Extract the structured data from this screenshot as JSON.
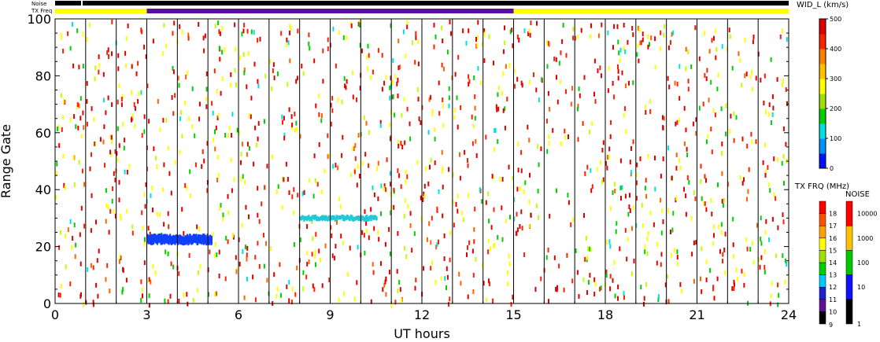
{
  "chart_data": {
    "type": "heatmap",
    "xlabel": "UT hours",
    "ylabel": "Range Gate",
    "xlim": [
      0,
      24
    ],
    "ylim": [
      0,
      100
    ],
    "x_ticks": [
      "0",
      "3",
      "6",
      "9",
      "12",
      "15",
      "18",
      "21",
      "24"
    ],
    "y_ticks": [
      "0",
      "20",
      "40",
      "60",
      "80",
      "100"
    ],
    "scan_boundaries_hours": [
      1,
      2,
      3,
      4,
      5,
      6,
      7,
      8,
      9,
      10,
      11,
      12,
      13,
      14,
      15,
      16,
      17,
      18,
      19,
      20,
      21,
      22,
      23
    ],
    "status_bars": {
      "noise_label": "Noise",
      "txfreq_label": "TX Freq",
      "noise_segments": [
        {
          "start": 0,
          "end": 0.85,
          "color": "#000000"
        },
        {
          "start": 0.85,
          "end": 0.9,
          "color": "#ffffff"
        },
        {
          "start": 0.9,
          "end": 24,
          "color": "#000000"
        }
      ],
      "txfreq_segments": [
        {
          "start": 0,
          "end": 3,
          "color": "#ffff00"
        },
        {
          "start": 3,
          "end": 15,
          "color": "#5a0fa0"
        },
        {
          "start": 15,
          "end": 24,
          "color": "#ffff00"
        }
      ]
    },
    "feature_bands": [
      {
        "x_start": 3.0,
        "x_end": 5.1,
        "gate_center": 22.5,
        "gate_halfwidth": 1.5,
        "color": "#1040ff"
      },
      {
        "x_start": 8.0,
        "x_end": 10.5,
        "gate_center": 30,
        "gate_halfwidth": 0.7,
        "color": "#20c8d8"
      }
    ],
    "colorbars": {
      "width": {
        "title": "WID_L (km/s)",
        "ticks": [
          "0",
          "100",
          "200",
          "300",
          "400",
          "500"
        ],
        "stops": [
          "#0010ff",
          "#0090ff",
          "#00e0e0",
          "#00d000",
          "#a0e000",
          "#ffff00",
          "#ffc000",
          "#ff8000",
          "#ff2000",
          "#e00000"
        ]
      },
      "txfreq": {
        "title": "TX FRQ (MHz)",
        "ticks": [
          "9",
          "10",
          "11",
          "12",
          "13",
          "14",
          "15",
          "16",
          "17",
          "18"
        ],
        "colors": [
          "#000000",
          "#601090",
          "#2020d0",
          "#00c8ff",
          "#00d000",
          "#a0e000",
          "#ffff00",
          "#ffa000",
          "#ff5000",
          "#ff0000"
        ]
      },
      "noise": {
        "title": "NOISE",
        "ticks": [
          "1",
          "10",
          "100",
          "1000",
          "10000"
        ],
        "colors": [
          "#000000",
          "#1010ff",
          "#00c800",
          "#ffc000",
          "#ff0000"
        ]
      }
    },
    "scatter_palette": [
      "#e00000",
      "#ff2000",
      "#ff6000",
      "#ffff00",
      "#c0ff00",
      "#00d000",
      "#00e0e0"
    ]
  }
}
